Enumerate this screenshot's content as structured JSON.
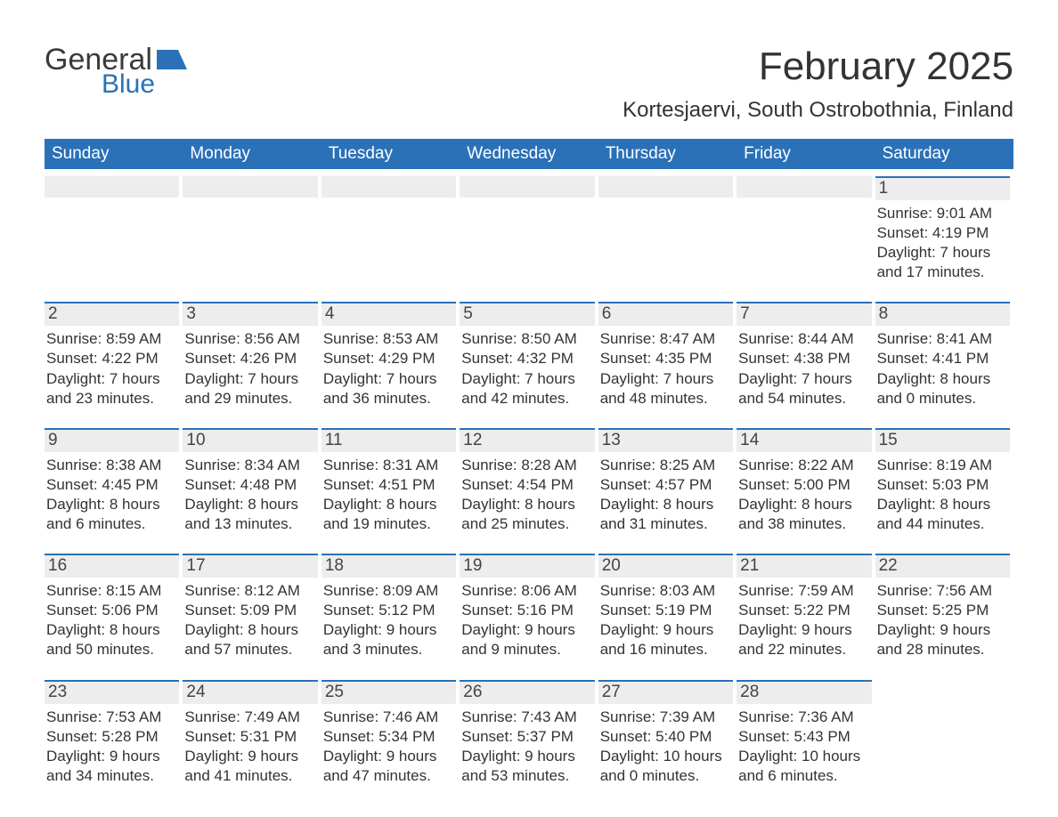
{
  "logo": {
    "text1": "General",
    "text2": "Blue",
    "color_general": "#3a3a3a",
    "color_blue": "#2a71b8"
  },
  "title": "February 2025",
  "location": "Kortesjaervi, South Ostrobothnia, Finland",
  "weekdays": [
    "Sunday",
    "Monday",
    "Tuesday",
    "Wednesday",
    "Thursday",
    "Friday",
    "Saturday"
  ],
  "colors": {
    "header_bg": "#2a71b8",
    "header_text": "#ffffff",
    "daybar_bg": "#ededed",
    "daybar_border": "#2a71b8",
    "text": "#333333",
    "background": "#ffffff"
  },
  "weeks": [
    [
      null,
      null,
      null,
      null,
      null,
      null,
      {
        "n": "1",
        "sunrise": "Sunrise: 9:01 AM",
        "sunset": "Sunset: 4:19 PM",
        "d1": "Daylight: 7 hours",
        "d2": "and 17 minutes."
      }
    ],
    [
      {
        "n": "2",
        "sunrise": "Sunrise: 8:59 AM",
        "sunset": "Sunset: 4:22 PM",
        "d1": "Daylight: 7 hours",
        "d2": "and 23 minutes."
      },
      {
        "n": "3",
        "sunrise": "Sunrise: 8:56 AM",
        "sunset": "Sunset: 4:26 PM",
        "d1": "Daylight: 7 hours",
        "d2": "and 29 minutes."
      },
      {
        "n": "4",
        "sunrise": "Sunrise: 8:53 AM",
        "sunset": "Sunset: 4:29 PM",
        "d1": "Daylight: 7 hours",
        "d2": "and 36 minutes."
      },
      {
        "n": "5",
        "sunrise": "Sunrise: 8:50 AM",
        "sunset": "Sunset: 4:32 PM",
        "d1": "Daylight: 7 hours",
        "d2": "and 42 minutes."
      },
      {
        "n": "6",
        "sunrise": "Sunrise: 8:47 AM",
        "sunset": "Sunset: 4:35 PM",
        "d1": "Daylight: 7 hours",
        "d2": "and 48 minutes."
      },
      {
        "n": "7",
        "sunrise": "Sunrise: 8:44 AM",
        "sunset": "Sunset: 4:38 PM",
        "d1": "Daylight: 7 hours",
        "d2": "and 54 minutes."
      },
      {
        "n": "8",
        "sunrise": "Sunrise: 8:41 AM",
        "sunset": "Sunset: 4:41 PM",
        "d1": "Daylight: 8 hours",
        "d2": "and 0 minutes."
      }
    ],
    [
      {
        "n": "9",
        "sunrise": "Sunrise: 8:38 AM",
        "sunset": "Sunset: 4:45 PM",
        "d1": "Daylight: 8 hours",
        "d2": "and 6 minutes."
      },
      {
        "n": "10",
        "sunrise": "Sunrise: 8:34 AM",
        "sunset": "Sunset: 4:48 PM",
        "d1": "Daylight: 8 hours",
        "d2": "and 13 minutes."
      },
      {
        "n": "11",
        "sunrise": "Sunrise: 8:31 AM",
        "sunset": "Sunset: 4:51 PM",
        "d1": "Daylight: 8 hours",
        "d2": "and 19 minutes."
      },
      {
        "n": "12",
        "sunrise": "Sunrise: 8:28 AM",
        "sunset": "Sunset: 4:54 PM",
        "d1": "Daylight: 8 hours",
        "d2": "and 25 minutes."
      },
      {
        "n": "13",
        "sunrise": "Sunrise: 8:25 AM",
        "sunset": "Sunset: 4:57 PM",
        "d1": "Daylight: 8 hours",
        "d2": "and 31 minutes."
      },
      {
        "n": "14",
        "sunrise": "Sunrise: 8:22 AM",
        "sunset": "Sunset: 5:00 PM",
        "d1": "Daylight: 8 hours",
        "d2": "and 38 minutes."
      },
      {
        "n": "15",
        "sunrise": "Sunrise: 8:19 AM",
        "sunset": "Sunset: 5:03 PM",
        "d1": "Daylight: 8 hours",
        "d2": "and 44 minutes."
      }
    ],
    [
      {
        "n": "16",
        "sunrise": "Sunrise: 8:15 AM",
        "sunset": "Sunset: 5:06 PM",
        "d1": "Daylight: 8 hours",
        "d2": "and 50 minutes."
      },
      {
        "n": "17",
        "sunrise": "Sunrise: 8:12 AM",
        "sunset": "Sunset: 5:09 PM",
        "d1": "Daylight: 8 hours",
        "d2": "and 57 minutes."
      },
      {
        "n": "18",
        "sunrise": "Sunrise: 8:09 AM",
        "sunset": "Sunset: 5:12 PM",
        "d1": "Daylight: 9 hours",
        "d2": "and 3 minutes."
      },
      {
        "n": "19",
        "sunrise": "Sunrise: 8:06 AM",
        "sunset": "Sunset: 5:16 PM",
        "d1": "Daylight: 9 hours",
        "d2": "and 9 minutes."
      },
      {
        "n": "20",
        "sunrise": "Sunrise: 8:03 AM",
        "sunset": "Sunset: 5:19 PM",
        "d1": "Daylight: 9 hours",
        "d2": "and 16 minutes."
      },
      {
        "n": "21",
        "sunrise": "Sunrise: 7:59 AM",
        "sunset": "Sunset: 5:22 PM",
        "d1": "Daylight: 9 hours",
        "d2": "and 22 minutes."
      },
      {
        "n": "22",
        "sunrise": "Sunrise: 7:56 AM",
        "sunset": "Sunset: 5:25 PM",
        "d1": "Daylight: 9 hours",
        "d2": "and 28 minutes."
      }
    ],
    [
      {
        "n": "23",
        "sunrise": "Sunrise: 7:53 AM",
        "sunset": "Sunset: 5:28 PM",
        "d1": "Daylight: 9 hours",
        "d2": "and 34 minutes."
      },
      {
        "n": "24",
        "sunrise": "Sunrise: 7:49 AM",
        "sunset": "Sunset: 5:31 PM",
        "d1": "Daylight: 9 hours",
        "d2": "and 41 minutes."
      },
      {
        "n": "25",
        "sunrise": "Sunrise: 7:46 AM",
        "sunset": "Sunset: 5:34 PM",
        "d1": "Daylight: 9 hours",
        "d2": "and 47 minutes."
      },
      {
        "n": "26",
        "sunrise": "Sunrise: 7:43 AM",
        "sunset": "Sunset: 5:37 PM",
        "d1": "Daylight: 9 hours",
        "d2": "and 53 minutes."
      },
      {
        "n": "27",
        "sunrise": "Sunrise: 7:39 AM",
        "sunset": "Sunset: 5:40 PM",
        "d1": "Daylight: 10 hours",
        "d2": "and 0 minutes."
      },
      {
        "n": "28",
        "sunrise": "Sunrise: 7:36 AM",
        "sunset": "Sunset: 5:43 PM",
        "d1": "Daylight: 10 hours",
        "d2": "and 6 minutes."
      },
      null
    ]
  ]
}
